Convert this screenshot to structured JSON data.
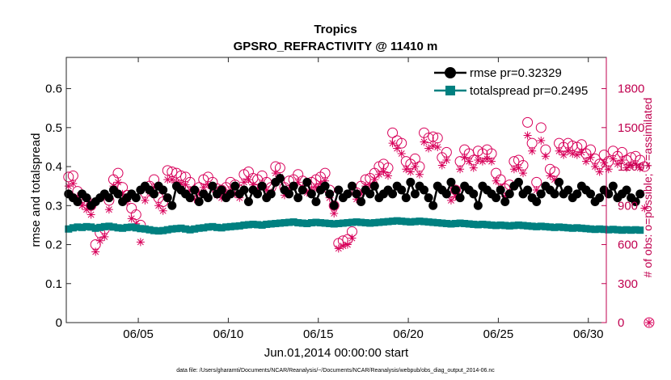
{
  "chart_data": {
    "type": "line",
    "title": "Tropics",
    "subtitle": "GPSRO_REFRACTIVITY @ 11410 m",
    "xlabel": "Jun.01,2014 00:00:00 start",
    "ylabel": "rmse and totalspread",
    "y2label": "# of obs: o=possible; ∗=assimilated",
    "footnote": "data file: /Users/gharamti/Documents/NCAR/Reanalysis/~/Documents/NCAR/Reanalysis/webpub/obs_diag_output_2014-06.nc",
    "xlim": [
      1,
      31
    ],
    "ylim": [
      0,
      0.68
    ],
    "y2lim": [
      0,
      2040
    ],
    "xticks": [
      5,
      10,
      15,
      20,
      25,
      30
    ],
    "xtick_labels": [
      "06/05",
      "06/10",
      "06/15",
      "06/20",
      "06/25",
      "06/30"
    ],
    "yticks": [
      0,
      0.1,
      0.2,
      0.3,
      0.4,
      0.5,
      0.6
    ],
    "ytick_labels": [
      "0",
      "0.1",
      "0.2",
      "0.3",
      "0.4",
      "0.5",
      "0.6"
    ],
    "y2ticks": [
      0,
      300,
      600,
      900,
      1200,
      1500,
      1800
    ],
    "y2tick_labels": [
      "0",
      "300",
      "600",
      "900",
      "1200",
      "1500",
      "1800"
    ],
    "legend_position": "top-right",
    "series": [
      {
        "name": "rmse pr=0.32329",
        "axis": "left",
        "marker": "circle",
        "color": "#000000",
        "x_start": 1.125,
        "x_step": 0.25,
        "values": [
          0.33,
          0.32,
          0.31,
          0.33,
          0.32,
          0.3,
          0.31,
          0.32,
          0.33,
          0.32,
          0.34,
          0.33,
          0.31,
          0.32,
          0.33,
          0.32,
          0.34,
          0.35,
          0.34,
          0.33,
          0.35,
          0.34,
          0.32,
          0.3,
          0.35,
          0.34,
          0.33,
          0.32,
          0.34,
          0.31,
          0.33,
          0.32,
          0.35,
          0.33,
          0.34,
          0.32,
          0.33,
          0.35,
          0.33,
          0.34,
          0.31,
          0.34,
          0.33,
          0.35,
          0.32,
          0.33,
          0.36,
          0.37,
          0.34,
          0.33,
          0.35,
          0.32,
          0.34,
          0.36,
          0.33,
          0.31,
          0.34,
          0.35,
          0.33,
          0.3,
          0.34,
          0.32,
          0.33,
          0.35,
          0.33,
          0.31,
          0.34,
          0.33,
          0.35,
          0.32,
          0.33,
          0.34,
          0.33,
          0.35,
          0.34,
          0.32,
          0.36,
          0.33,
          0.35,
          0.34,
          0.32,
          0.3,
          0.35,
          0.34,
          0.33,
          0.36,
          0.34,
          0.32,
          0.35,
          0.34,
          0.33,
          0.3,
          0.35,
          0.34,
          0.33,
          0.32,
          0.34,
          0.31,
          0.33,
          0.35,
          0.36,
          0.33,
          0.34,
          0.32,
          0.31,
          0.33,
          0.35,
          0.34,
          0.33,
          0.36,
          0.33,
          0.34,
          0.32,
          0.33,
          0.35,
          0.34,
          0.33,
          0.31,
          0.32,
          0.34,
          0.33,
          0.35,
          0.32,
          0.33,
          0.34,
          0.32,
          0.31,
          0.33
        ]
      },
      {
        "name": "totalspread pr=0.2495",
        "axis": "left",
        "marker": "square",
        "color": "#008080",
        "x_start": 1.125,
        "x_step": 0.25,
        "values": [
          0.24,
          0.243,
          0.245,
          0.244,
          0.246,
          0.245,
          0.242,
          0.244,
          0.246,
          0.247,
          0.245,
          0.243,
          0.242,
          0.244,
          0.245,
          0.243,
          0.241,
          0.24,
          0.238,
          0.236,
          0.235,
          0.236,
          0.238,
          0.24,
          0.241,
          0.242,
          0.24,
          0.238,
          0.24,
          0.242,
          0.243,
          0.245,
          0.246,
          0.244,
          0.243,
          0.245,
          0.246,
          0.247,
          0.248,
          0.25,
          0.251,
          0.252,
          0.251,
          0.25,
          0.252,
          0.253,
          0.254,
          0.255,
          0.256,
          0.257,
          0.258,
          0.256,
          0.255,
          0.254,
          0.256,
          0.257,
          0.256,
          0.255,
          0.254,
          0.253,
          0.254,
          0.255,
          0.256,
          0.257,
          0.258,
          0.257,
          0.256,
          0.255,
          0.256,
          0.257,
          0.258,
          0.259,
          0.26,
          0.261,
          0.26,
          0.259,
          0.258,
          0.259,
          0.26,
          0.259,
          0.258,
          0.257,
          0.256,
          0.255,
          0.254,
          0.253,
          0.254,
          0.255,
          0.254,
          0.253,
          0.252,
          0.251,
          0.252,
          0.251,
          0.25,
          0.249,
          0.25,
          0.249,
          0.248,
          0.249,
          0.25,
          0.249,
          0.248,
          0.247,
          0.246,
          0.247,
          0.246,
          0.245,
          0.244,
          0.245,
          0.244,
          0.243,
          0.242,
          0.243,
          0.242,
          0.241,
          0.24,
          0.239,
          0.24,
          0.239,
          0.238,
          0.239,
          0.238,
          0.237,
          0.238,
          0.237,
          0.238,
          0.237
        ]
      },
      {
        "name": "possible",
        "axis": "right",
        "marker": "open-circle",
        "color": "#d8005a",
        "x_start": 1.125,
        "x_step": 0.25,
        "values": [
          1120,
          1130,
          1010,
          960,
          940,
          900,
          600,
          690,
          720,
          940,
          1100,
          1150,
          1040,
          980,
          880,
          830,
          750,
          1000,
          1050,
          1100,
          960,
          930,
          1170,
          1160,
          1150,
          1130,
          1120,
          1080,
          1010,
          1040,
          1100,
          1120,
          1080,
          1030,
          1020,
          1040,
          1080,
          1060,
          1020,
          1140,
          1160,
          1110,
          1100,
          1130,
          1080,
          1040,
          1200,
          1190,
          1040,
          1090,
          1100,
          1140,
          1090,
          1050,
          1080,
          1100,
          1120,
          1150,
          1020,
          900,
          610,
          630,
          640,
          700,
          1000,
          1050,
          1100,
          1110,
          1150,
          1200,
          1220,
          1190,
          1460,
          1400,
          1380,
          1240,
          1220,
          1260,
          1200,
          1460,
          1420,
          1430,
          1420,
          1270,
          1310,
          1000,
          1020,
          1240,
          1330,
          1300,
          1250,
          1320,
          1300,
          1330,
          1300,
          1150,
          1100,
          1030,
          1060,
          1240,
          1250,
          1210,
          1540,
          1380,
          1080,
          1500,
          1330,
          1180,
          1160,
          1380,
          1350,
          1380,
          1360,
          1350,
          1370,
          1300,
          1330,
          1260,
          1220,
          1290,
          1240,
          1320,
          1280,
          1310,
          1250,
          1270,
          1280,
          1250,
          1200,
          0
        ]
      },
      {
        "name": "assimilated",
        "axis": "right",
        "marker": "asterisk",
        "color": "#d8005a",
        "x_start": 1.125,
        "x_step": 0.25,
        "values": [
          1050,
          1070,
          970,
          900,
          870,
          830,
          545,
          630,
          660,
          870,
          1050,
          1080,
          990,
          930,
          800,
          760,
          620,
          940,
          1000,
          1040,
          900,
          860,
          1100,
          1100,
          1080,
          1070,
          1060,
          1020,
          950,
          990,
          1040,
          1060,
          1030,
          980,
          960,
          980,
          1020,
          990,
          960,
          1080,
          1100,
          1060,
          1030,
          1070,
          1020,
          1000,
          1150,
          1120,
          980,
          1030,
          1050,
          1080,
          1030,
          1000,
          1020,
          1040,
          1070,
          1090,
          960,
          840,
          570,
          590,
          600,
          650,
          950,
          990,
          1050,
          1060,
          1100,
          1140,
          1160,
          1130,
          1380,
          1340,
          1300,
          1180,
          1160,
          1200,
          1140,
          1390,
          1340,
          1360,
          1350,
          1210,
          1250,
          940,
          970,
          1180,
          1270,
          1240,
          1190,
          1250,
          1240,
          1260,
          1240,
          1090,
          1040,
          970,
          1000,
          1180,
          1190,
          1150,
          1440,
          1320,
          1020,
          1400,
          1280,
          1130,
          1100,
          1320,
          1290,
          1320,
          1300,
          1290,
          1310,
          1240,
          1270,
          1200,
          1160,
          1230,
          1180,
          1260,
          1220,
          1250,
          1190,
          1210,
          1220,
          1190,
          880,
          0
        ]
      }
    ]
  }
}
